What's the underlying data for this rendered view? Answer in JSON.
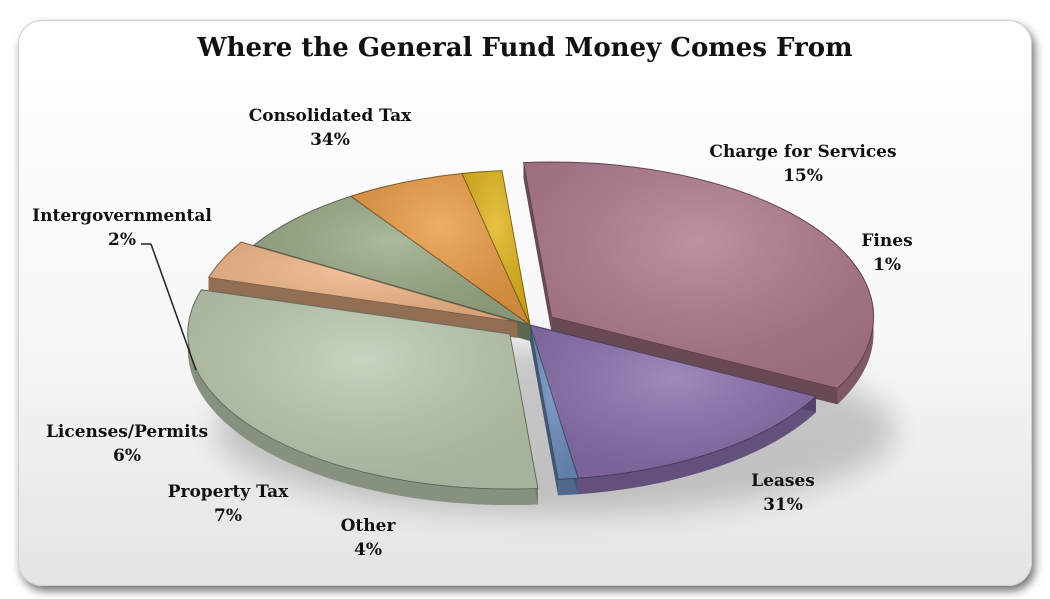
{
  "chart_data": {
    "type": "pie",
    "title": "Where the General Fund Money Comes From",
    "slices": [
      {
        "label": "Consolidated Tax",
        "percent_label": "34%",
        "value": 34,
        "color": "#b07a90"
      },
      {
        "label": "Charge for Services",
        "percent_label": "15%",
        "value": 15,
        "color": "#8a6fae"
      },
      {
        "label": "Fines",
        "percent_label": "1%",
        "value": 1,
        "color": "#6f90c0"
      },
      {
        "label": "Leases",
        "percent_label": "31%",
        "value": 31,
        "color": "#bccab0"
      },
      {
        "label": "Other",
        "percent_label": "4%",
        "value": 4,
        "color": "#f3b888"
      },
      {
        "label": "Property Tax",
        "percent_label": "7%",
        "value": 7,
        "color": "#9aab86"
      },
      {
        "label": "Licenses/Permits",
        "percent_label": "6%",
        "value": 6,
        "color": "#eb9c45"
      },
      {
        "label": "Intergovernmental",
        "percent_label": "2%",
        "value": 2,
        "color": "#e2b51c"
      }
    ]
  }
}
